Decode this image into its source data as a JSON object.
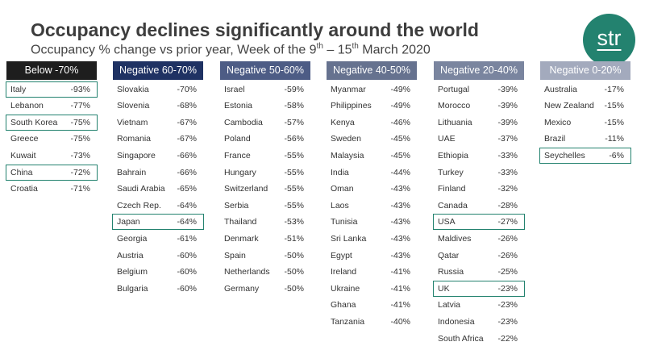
{
  "title": "Occupancy declines significantly around the world",
  "subtitle": {
    "pre": "Occupancy % change vs prior year, Week of the 9",
    "sup1": "th",
    "mid": " – 15",
    "sup2": "th",
    "post": " March 2020"
  },
  "logo": "str",
  "highlight_color": "#23826f",
  "columns": [
    {
      "header": "Below -70%",
      "color": "#1e1e1e",
      "rows": [
        {
          "country": "Italy",
          "value": "-93%",
          "highlight": true
        },
        {
          "country": "Lebanon",
          "value": "-77%"
        },
        {
          "country": "South Korea",
          "value": "-75%",
          "highlight": true
        },
        {
          "country": "Greece",
          "value": "-75%"
        },
        {
          "country": "Kuwait",
          "value": "-73%"
        },
        {
          "country": "China",
          "value": "-72%",
          "highlight": true
        },
        {
          "country": "Croatia",
          "value": "-71%"
        }
      ]
    },
    {
      "header": "Negative 60-70%",
      "color": "#1f3263",
      "rows": [
        {
          "country": "Slovakia",
          "value": "-70%"
        },
        {
          "country": "Slovenia",
          "value": "-68%"
        },
        {
          "country": "Vietnam",
          "value": "-67%"
        },
        {
          "country": "Romania",
          "value": "-67%"
        },
        {
          "country": "Singapore",
          "value": "-66%"
        },
        {
          "country": "Bahrain",
          "value": "-66%"
        },
        {
          "country": "Saudi Arabia",
          "value": "-65%"
        },
        {
          "country": "Czech Rep.",
          "value": "-64%"
        },
        {
          "country": "Japan",
          "value": "-64%",
          "highlight": true
        },
        {
          "country": "Georgia",
          "value": "-61%"
        },
        {
          "country": "Austria",
          "value": "-60%"
        },
        {
          "country": "Belgium",
          "value": "-60%"
        },
        {
          "country": "Bulgaria",
          "value": "-60%"
        }
      ]
    },
    {
      "header": "Negative 50-60%",
      "color": "#4d5c85",
      "rows": [
        {
          "country": "Israel",
          "value": "-59%"
        },
        {
          "country": "Estonia",
          "value": "-58%"
        },
        {
          "country": "Cambodia",
          "value": "-57%"
        },
        {
          "country": "Poland",
          "value": "-56%"
        },
        {
          "country": "France",
          "value": "-55%"
        },
        {
          "country": "Hungary",
          "value": "-55%"
        },
        {
          "country": "Switzerland",
          "value": "-55%"
        },
        {
          "country": "Serbia",
          "value": "-55%"
        },
        {
          "country": "Thailand",
          "value": "-53%"
        },
        {
          "country": "Denmark",
          "value": "-51%"
        },
        {
          "country": "Spain",
          "value": "-50%"
        },
        {
          "country": "Netherlands",
          "value": "-50%"
        },
        {
          "country": "Germany",
          "value": "-50%"
        }
      ]
    },
    {
      "header": "Negative 40-50%",
      "color": "#66728f",
      "rows": [
        {
          "country": "Myanmar",
          "value": "-49%"
        },
        {
          "country": "Philippines",
          "value": "-49%"
        },
        {
          "country": "Kenya",
          "value": "-46%"
        },
        {
          "country": "Sweden",
          "value": "-45%"
        },
        {
          "country": "Malaysia",
          "value": "-45%"
        },
        {
          "country": "India",
          "value": "-44%"
        },
        {
          "country": "Oman",
          "value": "-43%"
        },
        {
          "country": "Laos",
          "value": "-43%"
        },
        {
          "country": "Tunisia",
          "value": "-43%"
        },
        {
          "country": "Sri Lanka",
          "value": "-43%"
        },
        {
          "country": "Egypt",
          "value": "-43%"
        },
        {
          "country": "Ireland",
          "value": "-41%"
        },
        {
          "country": "Ukraine",
          "value": "-41%"
        },
        {
          "country": "Ghana",
          "value": "-41%"
        },
        {
          "country": "Tanzania",
          "value": "-40%"
        }
      ]
    },
    {
      "header": "Negative 20-40%",
      "color": "#7a859f",
      "rows": [
        {
          "country": "Portugal",
          "value": "-39%"
        },
        {
          "country": "Morocco",
          "value": "-39%"
        },
        {
          "country": "Lithuania",
          "value": "-39%"
        },
        {
          "country": "UAE",
          "value": "-37%"
        },
        {
          "country": "Ethiopia",
          "value": "-33%"
        },
        {
          "country": "Turkey",
          "value": "-33%"
        },
        {
          "country": "Finland",
          "value": "-32%"
        },
        {
          "country": "Canada",
          "value": "-28%"
        },
        {
          "country": "USA",
          "value": "-27%",
          "highlight": true
        },
        {
          "country": "Maldives",
          "value": "-26%"
        },
        {
          "country": "Qatar",
          "value": "-26%"
        },
        {
          "country": "Russia",
          "value": "-25%"
        },
        {
          "country": "UK",
          "value": "-23%",
          "highlight": true
        },
        {
          "country": "Latvia",
          "value": "-23%"
        },
        {
          "country": "Indonesia",
          "value": "-23%"
        },
        {
          "country": "South Africa",
          "value": "-22%"
        }
      ]
    },
    {
      "header": "Negative 0-20%",
      "color": "#a3aabd",
      "rows": [
        {
          "country": "Australia",
          "value": "-17%"
        },
        {
          "country": "New Zealand",
          "value": "-15%"
        },
        {
          "country": "Mexico",
          "value": "-15%"
        },
        {
          "country": "Brazil",
          "value": "-11%"
        },
        {
          "country": "Seychelles",
          "value": "-6%",
          "highlight": true
        }
      ]
    }
  ]
}
